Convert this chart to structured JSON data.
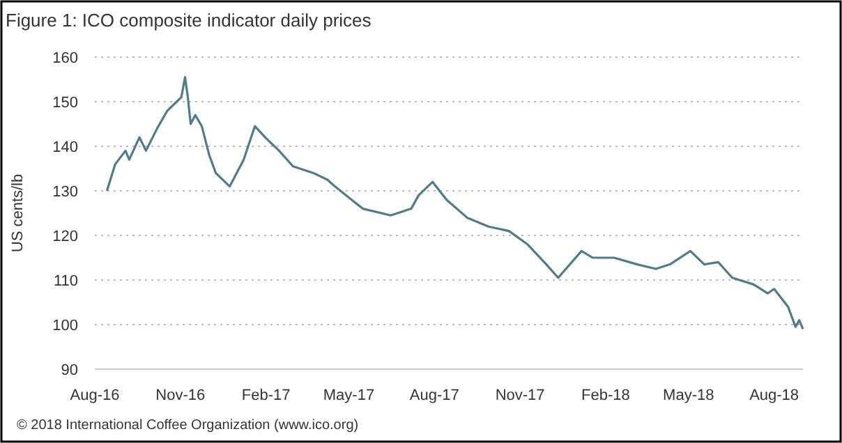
{
  "chart_data": {
    "type": "line",
    "title": "Figure 1: ICO composite indicator daily prices",
    "ylabel": "US cents/lb",
    "x": [
      "2016-08-14",
      "2016-08-23",
      "2016-09-03",
      "2016-09-07",
      "2016-09-18",
      "2016-09-25",
      "2016-10-07",
      "2016-10-18",
      "2016-10-28",
      "2016-11-02",
      "2016-11-06",
      "2016-11-09",
      "2016-11-12",
      "2016-11-17",
      "2016-11-24",
      "2016-12-02",
      "2016-12-09",
      "2016-12-24",
      "2017-01-08",
      "2017-01-20",
      "2017-01-31",
      "2017-02-15",
      "2017-03-02",
      "2017-03-24",
      "2017-04-08",
      "2017-04-16",
      "2017-05-16",
      "2017-06-15",
      "2017-07-07",
      "2017-07-15",
      "2017-07-30",
      "2017-08-14",
      "2017-09-05",
      "2017-09-28",
      "2017-10-20",
      "2017-11-09",
      "2017-11-27",
      "2017-12-12",
      "2018-01-06",
      "2018-01-18",
      "2018-02-10",
      "2018-03-07",
      "2018-03-27",
      "2018-04-11",
      "2018-05-03",
      "2018-05-18",
      "2018-06-02",
      "2018-06-17",
      "2018-07-10",
      "2018-07-25",
      "2018-08-01",
      "2018-08-16",
      "2018-08-24",
      "2018-08-28",
      "2018-09-01"
    ],
    "series": [
      {
        "color": "#4f7c8a",
        "values": [
          130,
          136,
          139,
          137,
          142,
          139,
          144,
          148,
          150,
          151,
          155.5,
          151,
          145,
          147,
          144.5,
          138,
          134,
          131,
          137,
          144.5,
          142,
          139,
          135.5,
          134,
          132.5,
          131,
          126,
          124.5,
          126,
          129,
          132,
          128,
          124,
          122,
          121,
          118,
          114,
          110.5,
          116.5,
          115,
          115,
          113.5,
          112.5,
          113.5,
          116.5,
          113.5,
          114,
          110.5,
          109,
          107,
          108,
          104,
          99.5,
          101,
          99
        ]
      }
    ],
    "xlim": [
      "2016-08-01",
      "2018-09-01"
    ],
    "xticks": [
      {
        "value": "2016-08-01",
        "label": "Aug-16"
      },
      {
        "value": "2016-11-01",
        "label": "Nov-16"
      },
      {
        "value": "2017-02-01",
        "label": "Feb-17"
      },
      {
        "value": "2017-05-01",
        "label": "May-17"
      },
      {
        "value": "2017-08-01",
        "label": "Aug-17"
      },
      {
        "value": "2017-11-01",
        "label": "Nov-17"
      },
      {
        "value": "2018-02-01",
        "label": "Feb-18"
      },
      {
        "value": "2018-05-01",
        "label": "May-18"
      },
      {
        "value": "2018-08-01",
        "label": "Aug-18"
      }
    ],
    "ylim": [
      90,
      160
    ],
    "yticks": [
      90,
      100,
      110,
      120,
      130,
      140,
      150,
      160
    ],
    "grid": "y",
    "marker": "none",
    "line_style": "solid",
    "annotations": [
      "© 2018 International Coffee Organization (www.ico.org)"
    ]
  }
}
